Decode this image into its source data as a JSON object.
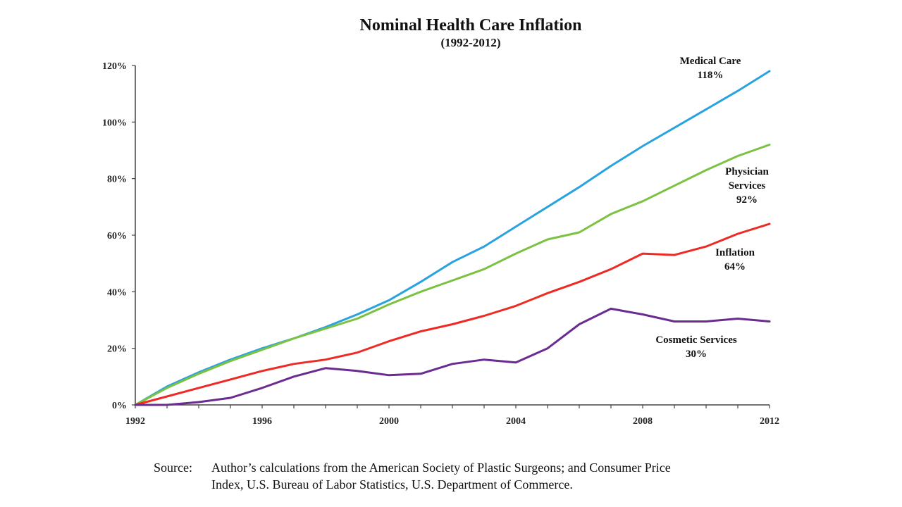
{
  "chart_data": {
    "type": "line",
    "title": "Nominal Health Care Inflation",
    "subtitle": "(1992-2012)",
    "x": [
      1992,
      1993,
      1994,
      1995,
      1996,
      1997,
      1998,
      1999,
      2000,
      2001,
      2002,
      2003,
      2004,
      2005,
      2006,
      2007,
      2008,
      2009,
      2010,
      2011,
      2012
    ],
    "xticks": [
      "1992",
      "1996",
      "2000",
      "2004",
      "2008",
      "2012"
    ],
    "xlim": [
      1992,
      2012
    ],
    "ylim": [
      0,
      120
    ],
    "yticks": [
      "0%",
      "20%",
      "40%",
      "60%",
      "80%",
      "100%",
      "120%"
    ],
    "grid": false,
    "legend": "none",
    "series": [
      {
        "name": "Medical Care",
        "end_label": [
          "Medical Care",
          "118%"
        ],
        "color": "#29a3e0",
        "values": [
          0,
          6.5,
          11.5,
          16,
          20,
          23.5,
          27.5,
          32,
          37,
          43.5,
          50.5,
          56,
          63,
          70,
          77,
          84.5,
          91.5,
          98,
          104.5,
          111,
          118
        ]
      },
      {
        "name": "Physician Services",
        "end_label": [
          "Physician",
          "Services",
          "92%"
        ],
        "color": "#7cc242",
        "values": [
          0,
          6,
          11,
          15.5,
          19.5,
          23.5,
          27,
          30.5,
          35.5,
          40,
          44,
          48,
          53.5,
          58.5,
          61,
          67.5,
          72,
          77.5,
          83,
          88,
          92
        ]
      },
      {
        "name": "Inflation",
        "end_label": [
          "Inflation",
          "64%"
        ],
        "color": "#ee2a24",
        "values": [
          0,
          3,
          6,
          9,
          12,
          14.5,
          16,
          18.5,
          22.5,
          26,
          28.5,
          31.5,
          35,
          39.5,
          43.5,
          48,
          53.5,
          53,
          56,
          60.5,
          64
        ]
      },
      {
        "name": "Cosmetic Services",
        "end_label": [
          "Cosmetic Services",
          "30%"
        ],
        "color": "#6a2c91",
        "values": [
          0,
          0,
          1,
          2.5,
          6,
          10,
          13,
          12,
          10.5,
          11,
          14.5,
          16,
          15,
          20,
          28.5,
          34,
          32,
          29.5,
          29.5,
          30.5,
          29.5
        ]
      }
    ]
  },
  "source": {
    "label": "Source:",
    "line1": "Author’s calculations from the American Society of Plastic Surgeons; and Consumer Price",
    "line2": "Index, U.S. Bureau of Labor Statistics, U.S. Department of Commerce."
  }
}
